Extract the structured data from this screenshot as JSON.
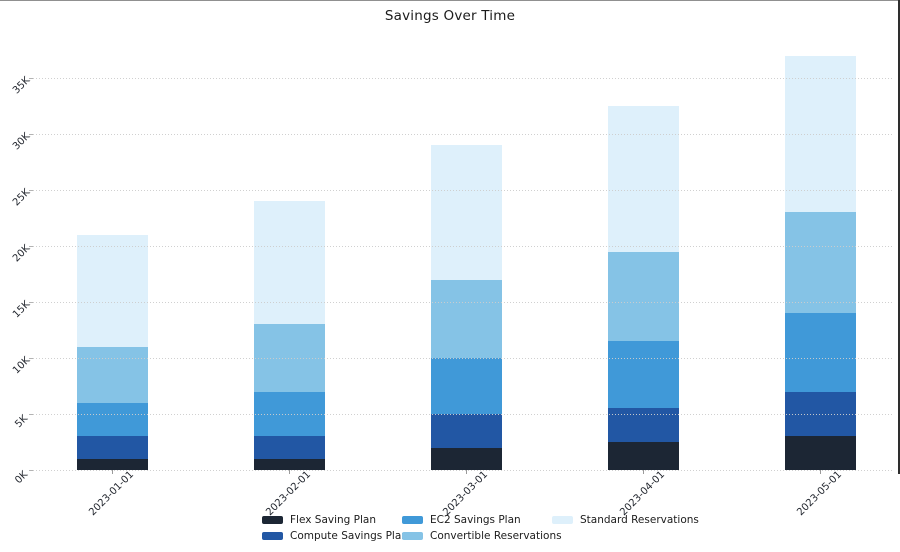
{
  "window": {
    "top_edge_color": "#909090",
    "right_edge_color": "#2e2e2e",
    "background": "#ffffff"
  },
  "chart_data": {
    "type": "bar",
    "stacked": true,
    "title": "Savings Over Time",
    "categories": [
      "2023-01-01",
      "2023-02-01",
      "2023-03-01",
      "2023-04-01",
      "2023-05-01"
    ],
    "series": [
      {
        "name": "Flex Saving Plan",
        "color": "#1c2634",
        "values_k": [
          1,
          1,
          2,
          2.5,
          3
        ]
      },
      {
        "name": "Compute Savings Plan",
        "color": "#2257a4",
        "values_k": [
          2,
          2,
          3,
          3,
          4
        ]
      },
      {
        "name": "EC2 Savings Plan",
        "color": "#4099d8",
        "values_k": [
          3,
          4,
          5,
          6,
          7
        ]
      },
      {
        "name": "Convertible Reservations",
        "color": "#85c3e6",
        "values_k": [
          5,
          6,
          7,
          8,
          9
        ]
      },
      {
        "name": "Standard Reservations",
        "color": "#def0fb",
        "values_k": [
          10,
          11,
          12,
          13,
          14
        ]
      }
    ],
    "totals_k": [
      21,
      24,
      29,
      32.5,
      37
    ],
    "y_axis": {
      "tick_labels": [
        "0K",
        "5K",
        "10K",
        "15K",
        "20K",
        "25K",
        "30K",
        "35K"
      ],
      "tick_values_k": [
        0,
        5,
        10,
        15,
        20,
        25,
        30,
        35
      ],
      "ylim_k": [
        0,
        38
      ]
    },
    "x_axis": {
      "tick_label_rotation_deg": 45
    },
    "grid": "horizontal-dotted",
    "legend_position": "bottom"
  }
}
